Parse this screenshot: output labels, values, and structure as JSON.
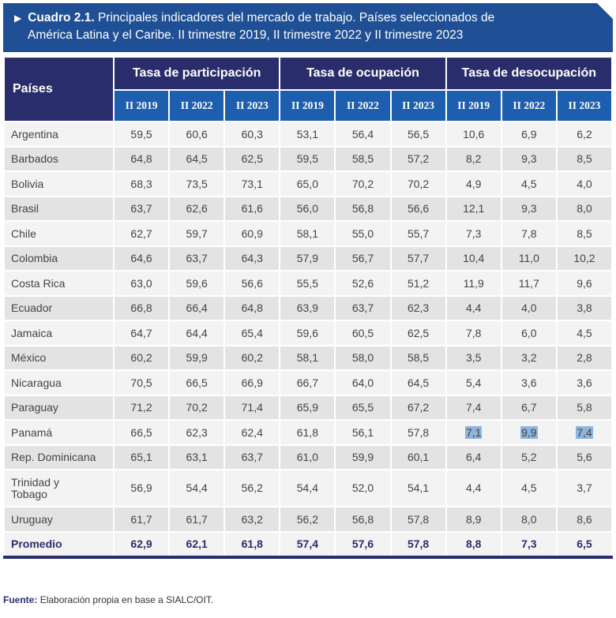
{
  "title": {
    "label": "Cuadro 2.1.",
    "text_line1": "Principales indicadores del mercado de trabajo. Países seleccionados de",
    "text_line2": "América Latina y el Caribe. II trimestre 2019, II trimestre 2022 y II trimestre 2023"
  },
  "header": {
    "country": "Países",
    "groups": [
      "Tasa de participación",
      "Tasa de ocupación",
      "Tasa de desocupación"
    ],
    "periods": [
      "II 2019",
      "II 2022",
      "II 2023"
    ]
  },
  "rows": [
    {
      "country": "Argentina",
      "values": [
        "59,5",
        "60,6",
        "60,3",
        "53,1",
        "56,4",
        "56,5",
        "10,6",
        "6,9",
        "6,2"
      ]
    },
    {
      "country": "Barbados",
      "values": [
        "64,8",
        "64,5",
        "62,5",
        "59,5",
        "58,5",
        "57,2",
        "8,2",
        "9,3",
        "8,5"
      ]
    },
    {
      "country": "Bolivia",
      "values": [
        "68,3",
        "73,5",
        "73,1",
        "65,0",
        "70,2",
        "70,2",
        "4,9",
        "4,5",
        "4,0"
      ]
    },
    {
      "country": "Brasil",
      "values": [
        "63,7",
        "62,6",
        "61,6",
        "56,0",
        "56,8",
        "56,6",
        "12,1",
        "9,3",
        "8,0"
      ]
    },
    {
      "country": "Chile",
      "values": [
        "62,7",
        "59,7",
        "60,9",
        "58,1",
        "55,0",
        "55,7",
        "7,3",
        "7,8",
        "8,5"
      ]
    },
    {
      "country": "Colombia",
      "values": [
        "64,6",
        "63,7",
        "64,3",
        "57,9",
        "56,7",
        "57,7",
        "10,4",
        "11,0",
        "10,2"
      ]
    },
    {
      "country": "Costa Rica",
      "values": [
        "63,0",
        "59,6",
        "56,6",
        "55,5",
        "52,6",
        "51,2",
        "11,9",
        "11,7",
        "9,6"
      ]
    },
    {
      "country": "Ecuador",
      "values": [
        "66,8",
        "66,4",
        "64,8",
        "63,9",
        "63,7",
        "62,3",
        "4,4",
        "4,0",
        "3,8"
      ]
    },
    {
      "country": "Jamaica",
      "values": [
        "64,7",
        "64,4",
        "65,4",
        "59,6",
        "60,5",
        "62,5",
        "7,8",
        "6,0",
        "4,5"
      ]
    },
    {
      "country": "México",
      "values": [
        "60,2",
        "59,9",
        "60,2",
        "58,1",
        "58,0",
        "58,5",
        "3,5",
        "3,2",
        "2,8"
      ]
    },
    {
      "country": "Nicaragua",
      "values": [
        "70,5",
        "66,5",
        "66,9",
        "66,7",
        "64,0",
        "64,5",
        "5,4",
        "3,6",
        "3,6"
      ]
    },
    {
      "country": "Paraguay",
      "values": [
        "71,2",
        "70,2",
        "71,4",
        "65,9",
        "65,5",
        "67,2",
        "7,4",
        "6,7",
        "5,8"
      ]
    },
    {
      "country": "Panamá",
      "values": [
        "66,5",
        "62,3",
        "62,4",
        "61,8",
        "56,1",
        "57,8",
        "7,1",
        "9,9",
        "7,4"
      ],
      "highlighted": [
        6,
        7,
        8
      ]
    },
    {
      "country": "Rep. Dominicana",
      "values": [
        "65,1",
        "63,1",
        "63,7",
        "61,0",
        "59,9",
        "60,1",
        "6,4",
        "5,2",
        "5,6"
      ]
    },
    {
      "country": "Trinidad y Tobago",
      "values": [
        "56,9",
        "54,4",
        "56,2",
        "54,4",
        "52,0",
        "54,1",
        "4,4",
        "4,5",
        "3,7"
      ]
    },
    {
      "country": "Uruguay",
      "values": [
        "61,7",
        "61,7",
        "63,2",
        "56,2",
        "56,8",
        "57,8",
        "8,9",
        "8,0",
        "8,6"
      ]
    }
  ],
  "average": {
    "country": "Promedio",
    "values": [
      "62,9",
      "62,1",
      "61,8",
      "57,4",
      "57,6",
      "57,8",
      "8,8",
      "7,3",
      "6,5"
    ]
  },
  "footer": {
    "label": "Fuente:",
    "text": "Elaboración propia en base a SIALC/OIT."
  },
  "colors": {
    "banner": "#1f4f94",
    "header_dark": "#2a2d6b",
    "header_blue": "#1d5fae",
    "highlight": "#8fb4da"
  }
}
